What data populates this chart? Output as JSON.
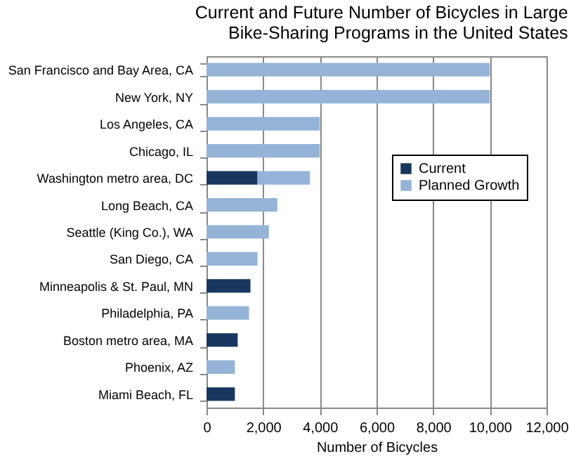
{
  "chart_data": {
    "type": "bar",
    "orientation": "horizontal",
    "stacked": true,
    "title": "Current and Future Number of Bicycles in Large Bike-Sharing Programs in the United States",
    "xlabel": "Number of Bicycles",
    "categories": [
      "San Francisco and Bay Area, CA",
      "New York, NY",
      "Los Angeles, CA",
      "Chicago, IL",
      "Washington metro area, DC",
      "Long Beach, CA",
      "Seattle (King Co.), WA",
      "San Diego, CA",
      "Minneapolis & St. Paul, MN",
      "Philadelphia, PA",
      "Boston metro area, MA",
      "Phoenix, AZ",
      "Miami Beach, FL"
    ],
    "series": [
      {
        "name": "Current",
        "color": "#17375e",
        "values": [
          null,
          null,
          null,
          null,
          1800,
          null,
          null,
          null,
          1550,
          null,
          1100,
          null,
          1000
        ]
      },
      {
        "name": "Planned Growth",
        "color": "#95b3d7",
        "values": [
          10000,
          10000,
          4000,
          4000,
          1850,
          2500,
          2200,
          1800,
          null,
          1500,
          null,
          1000,
          null
        ]
      }
    ],
    "xlim": [
      0,
      12000
    ],
    "xticks": [
      0,
      {
        "value": 2000,
        "label": "2,000"
      },
      {
        "value": 4000,
        "label": "4,000"
      },
      {
        "value": 6000,
        "label": "6,000"
      },
      {
        "value": 8000,
        "label": "8,000"
      },
      {
        "value": 10000,
        "label": "10,000"
      },
      {
        "value": 12000,
        "label": "12,000"
      }
    ],
    "grid": "x",
    "legend": "right"
  }
}
